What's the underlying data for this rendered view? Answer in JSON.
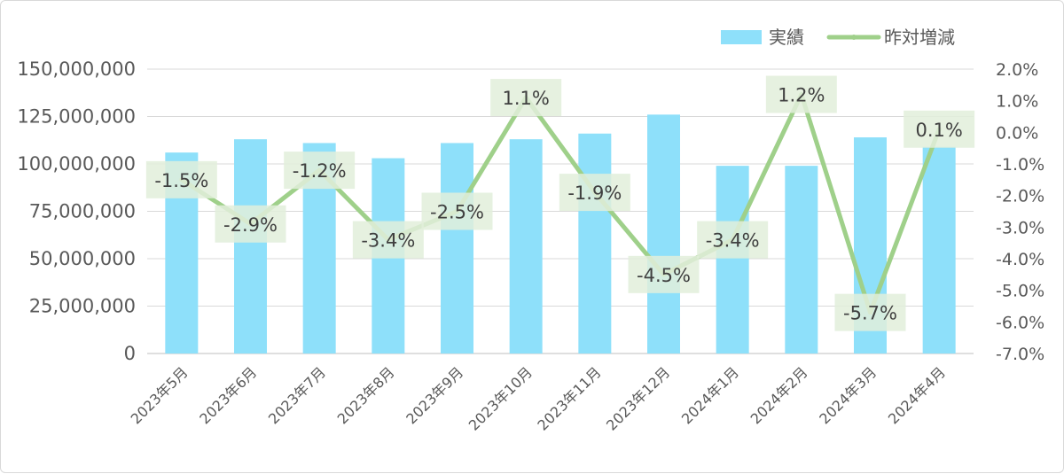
{
  "chart_data": {
    "type": "bar",
    "categories": [
      "2023年5月",
      "2023年6月",
      "2023年7月",
      "2023年8月",
      "2023年9月",
      "2023年10月",
      "2023年11月",
      "2023年12月",
      "2024年1月",
      "2024年2月",
      "2024年3月",
      "2024年4月"
    ],
    "series": [
      {
        "name": "実績",
        "type": "bar",
        "axis": "left",
        "color": "#8ee0fa",
        "values": [
          106000000,
          113000000,
          111000000,
          103000000,
          111000000,
          113000000,
          116000000,
          126000000,
          99000000,
          99000000,
          114000000,
          109000000
        ]
      },
      {
        "name": "昨対増減",
        "type": "line",
        "axis": "right",
        "color": "#9fd08a",
        "values": [
          -1.5,
          -2.9,
          -1.2,
          -3.4,
          -2.5,
          1.1,
          -1.9,
          -4.5,
          -3.4,
          1.2,
          -5.7,
          0.1
        ],
        "labels": [
          "-1.5%",
          "-2.9%",
          "-1.2%",
          "-3.4%",
          "-2.5%",
          "1.1%",
          "-1.9%",
          "-4.5%",
          "-3.4%",
          "1.2%",
          "-5.7%",
          "0.1%"
        ]
      }
    ],
    "y_left": {
      "ylim": [
        0,
        150000000
      ],
      "ticks": [
        0,
        25000000,
        50000000,
        75000000,
        100000000,
        125000000,
        150000000
      ],
      "tick_labels": [
        "0",
        "25,000,000",
        "50,000,000",
        "75,000,000",
        "100,000,000",
        "125,000,000",
        "150,000,000"
      ]
    },
    "y_right": {
      "ylim": [
        -7.0,
        2.0
      ],
      "ticks": [
        -7,
        -6,
        -5,
        -4,
        -3,
        -2,
        -1,
        0,
        1,
        2
      ],
      "tick_labels": [
        "-7.0%",
        "-6.0%",
        "-5.0%",
        "-4.0%",
        "-3.0%",
        "-2.0%",
        "-1.0%",
        "0.0%",
        "1.0%",
        "2.0%"
      ]
    },
    "grid": true,
    "legend": "top-right",
    "label_box_color": "#e2efda"
  }
}
